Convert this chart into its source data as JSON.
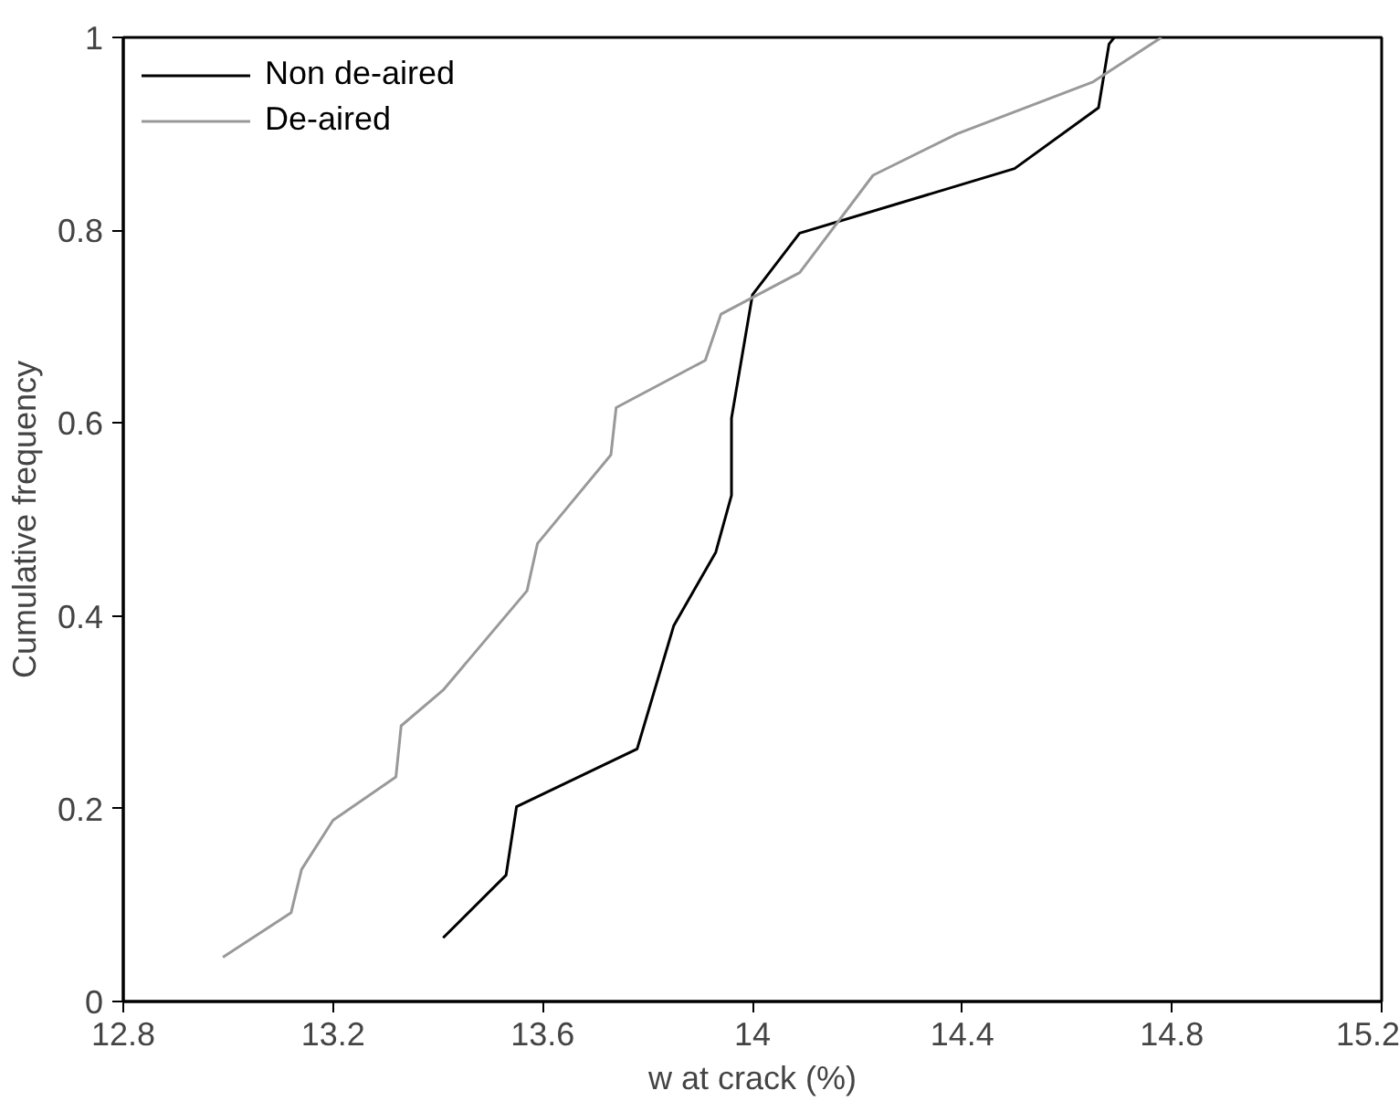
{
  "chart_data": {
    "type": "line",
    "xlabel": "w at crack (%)",
    "ylabel": "Cumulative frequency",
    "xlim": [
      12.8,
      15.2
    ],
    "ylim": [
      0,
      1
    ],
    "xticks": [
      12.8,
      13.2,
      13.6,
      14,
      14.4,
      14.8,
      15.2
    ],
    "yticks": [
      0,
      0.2,
      0.4,
      0.6,
      0.8,
      1
    ],
    "grid": false,
    "legend": "top left",
    "marker": "none",
    "line_style": "solid",
    "series": [
      {
        "name": "Non de-aired",
        "color": "#000000",
        "x": [
          13.41,
          13.53,
          13.55,
          13.78,
          13.85,
          13.93,
          13.96,
          13.96,
          14.0,
          14.09,
          14.5,
          14.66,
          14.68,
          14.69
        ],
        "values": [
          0.066,
          0.131,
          0.202,
          0.262,
          0.39,
          0.466,
          0.525,
          0.605,
          0.733,
          0.797,
          0.864,
          0.927,
          0.993,
          1.0
        ]
      },
      {
        "name": "De-aired",
        "color": "#999999",
        "x": [
          12.99,
          13.12,
          13.14,
          13.2,
          13.32,
          13.33,
          13.41,
          13.57,
          13.59,
          13.73,
          13.74,
          13.91,
          13.94,
          14.09,
          14.23,
          14.39,
          14.65,
          14.78
        ],
        "values": [
          0.046,
          0.092,
          0.137,
          0.188,
          0.233,
          0.286,
          0.323,
          0.426,
          0.475,
          0.567,
          0.616,
          0.665,
          0.713,
          0.756,
          0.857,
          0.9,
          0.954,
          1.0
        ]
      }
    ]
  }
}
